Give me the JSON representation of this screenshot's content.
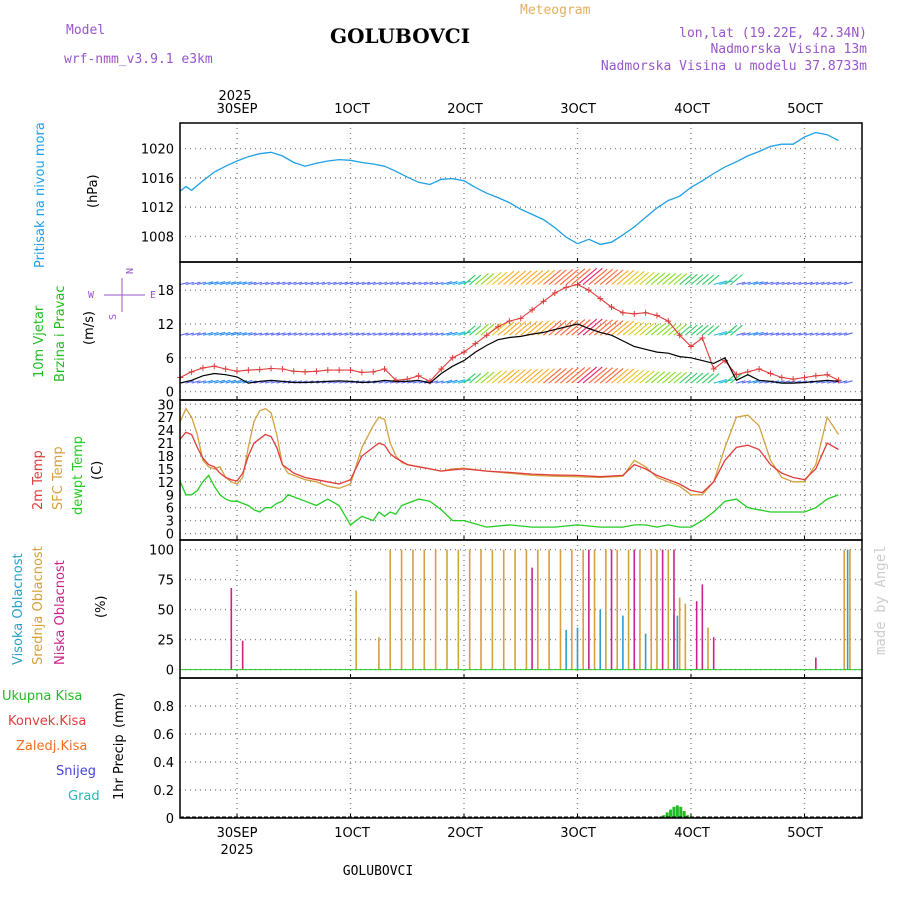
{
  "header": {
    "model_label": "Model",
    "model_value": "wrf-nmm_v3.9.1 e3km",
    "station": "GOLUBOVCI",
    "title": "Meteogram",
    "coords": "lon,lat (19.22E, 42.34N)",
    "elevation": "Nadmorska Visina 13m",
    "model_elevation": "Nadmorska Visina u modelu 37.8733m",
    "footer_station": "GOLUBOVCI",
    "credit": "made by Angel"
  },
  "colors": {
    "pressure": "#1ea0e6",
    "wind_label": "#22bb22",
    "tmp2m": "#e03c3c",
    "sfc": "#d4a040",
    "dewpt": "#22cc22",
    "high_cloud": "#2aa0c8",
    "mid_cloud": "#d4a040",
    "low_cloud": "#cc2288",
    "total_precip": "#22bb22",
    "conv_precip": "#e03c3c",
    "frz_precip": "#f07020",
    "snow": "#4444dd",
    "hail": "#22bbbb",
    "wind_dir": "#9955cc"
  },
  "time_axis": {
    "top_year": "2025",
    "bottom_year": "2025",
    "labels": [
      "30SEP",
      "1OCT",
      "2OCT",
      "3OCT",
      "4OCT",
      "5OCT"
    ]
  },
  "wind_compass": {
    "w": "W",
    "e": "E",
    "n": "N",
    "s": "S"
  },
  "chart_data": [
    {
      "type": "line",
      "id": "pressure",
      "title": "Pritisak na nivou mora",
      "ylabel": "(hPa)",
      "ylim": [
        1004.5,
        1023.5
      ],
      "yticks": [
        1008,
        1012,
        1016,
        1020
      ],
      "x_days": [
        -0.5,
        -0.45,
        -0.4,
        -0.3,
        -0.2,
        -0.1,
        0,
        0.1,
        0.2,
        0.3,
        0.4,
        0.5,
        0.6,
        0.7,
        0.8,
        0.9,
        1.0,
        1.1,
        1.2,
        1.3,
        1.4,
        1.5,
        1.6,
        1.7,
        1.8,
        1.9,
        2.0,
        2.1,
        2.2,
        2.3,
        2.4,
        2.5,
        2.6,
        2.7,
        2.8,
        2.9,
        3.0,
        3.1,
        3.2,
        3.3,
        3.4,
        3.5,
        3.6,
        3.7,
        3.8,
        3.9,
        4.0,
        4.1,
        4.2,
        4.3,
        4.4,
        4.5,
        4.6,
        4.7,
        4.8,
        4.9,
        5.0,
        5.1,
        5.2,
        5.3
      ],
      "values": [
        1014.2,
        1014.8,
        1014.3,
        1015.6,
        1016.8,
        1017.6,
        1018.3,
        1018.9,
        1019.3,
        1019.5,
        1019.0,
        1018.1,
        1017.6,
        1018.0,
        1018.3,
        1018.5,
        1018.4,
        1018.1,
        1017.9,
        1017.6,
        1016.9,
        1016.1,
        1015.4,
        1015.1,
        1015.8,
        1015.9,
        1015.6,
        1014.7,
        1013.9,
        1013.3,
        1012.6,
        1011.7,
        1011.0,
        1010.3,
        1009.2,
        1007.9,
        1007.0,
        1007.6,
        1006.9,
        1007.2,
        1008.2,
        1009.3,
        1010.6,
        1011.9,
        1012.9,
        1013.5,
        1014.7,
        1015.6,
        1016.6,
        1017.5,
        1018.2,
        1019.0,
        1019.6,
        1020.3,
        1020.6,
        1020.6,
        1021.6,
        1022.2,
        1021.9,
        1021.1
      ]
    },
    {
      "type": "line",
      "id": "wind",
      "title": "10m Vjetar",
      "title2": "Brzina i Pravac",
      "ylabel": "(m/s)",
      "ylim": [
        -1.5,
        23
      ],
      "yticks": [
        0,
        6,
        12,
        18
      ],
      "series": [
        {
          "name": "speed",
          "x_days": [
            -0.5,
            -0.4,
            -0.3,
            -0.2,
            -0.1,
            0,
            0.1,
            0.2,
            0.3,
            0.4,
            0.5,
            0.6,
            0.7,
            0.8,
            0.9,
            1.0,
            1.1,
            1.2,
            1.3,
            1.4,
            1.5,
            1.6,
            1.7,
            1.8,
            1.9,
            2.0,
            2.1,
            2.2,
            2.3,
            2.4,
            2.5,
            2.6,
            2.7,
            2.8,
            2.9,
            3.0,
            3.1,
            3.2,
            3.3,
            3.4,
            3.5,
            3.6,
            3.7,
            3.8,
            3.9,
            4.0,
            4.1,
            4.2,
            4.3,
            4.4,
            4.5,
            4.6,
            4.7,
            4.8,
            4.9,
            5.0,
            5.1,
            5.2,
            5.3
          ],
          "values": [
            1.5,
            2.0,
            2.8,
            3.2,
            3.0,
            2.6,
            1.5,
            1.8,
            2.0,
            1.8,
            1.6,
            1.6,
            1.7,
            1.8,
            1.9,
            1.8,
            1.6,
            1.7,
            2.0,
            1.8,
            1.8,
            2.0,
            1.5,
            3.2,
            4.5,
            5.5,
            7.0,
            8.2,
            9.2,
            9.6,
            9.8,
            10.2,
            10.5,
            11.0,
            11.5,
            12.0,
            11.2,
            10.5,
            10.0,
            9.0,
            8.0,
            7.5,
            7.0,
            6.8,
            6.2,
            6.0,
            5.5,
            5.0,
            6.0,
            2.0,
            3.0,
            2.0,
            1.8,
            1.5,
            1.5,
            1.6,
            1.8,
            2.0,
            1.8
          ]
        },
        {
          "name": "gust",
          "x_days": [
            -0.5,
            -0.4,
            -0.3,
            -0.2,
            -0.1,
            0,
            0.1,
            0.2,
            0.3,
            0.4,
            0.5,
            0.6,
            0.7,
            0.8,
            0.9,
            1.0,
            1.1,
            1.2,
            1.3,
            1.4,
            1.5,
            1.6,
            1.7,
            1.8,
            1.9,
            2.0,
            2.1,
            2.2,
            2.3,
            2.4,
            2.5,
            2.6,
            2.7,
            2.8,
            2.9,
            3.0,
            3.1,
            3.2,
            3.3,
            3.4,
            3.5,
            3.6,
            3.7,
            3.8,
            3.9,
            4.0,
            4.1,
            4.2,
            4.3,
            4.4,
            4.5,
            4.6,
            4.7,
            4.8,
            4.9,
            5.0,
            5.1,
            5.2,
            5.3
          ],
          "values": [
            2.5,
            3.5,
            4.2,
            4.5,
            4.0,
            3.6,
            3.8,
            3.9,
            4.1,
            4.0,
            3.6,
            3.5,
            3.6,
            3.8,
            3.8,
            3.8,
            3.4,
            3.5,
            4.0,
            2.0,
            2.2,
            2.8,
            1.8,
            4.0,
            6.0,
            7.0,
            8.5,
            10.0,
            11.5,
            12.5,
            13.0,
            14.5,
            16.0,
            17.5,
            18.5,
            19.0,
            18.0,
            16.5,
            15.0,
            14.0,
            13.8,
            14.0,
            13.5,
            12.5,
            10.0,
            8.0,
            9.5,
            4.0,
            5.5,
            3.0,
            3.5,
            4.0,
            3.2,
            2.5,
            2.2,
            2.5,
            2.8,
            3.0,
            2.0
          ]
        }
      ]
    },
    {
      "type": "line",
      "id": "temperature",
      "title": "2m Temp",
      "title2": "SFC Temp",
      "title3": "dewpt Temp",
      "ylabel": "(C)",
      "ylim": [
        -1.5,
        31
      ],
      "yticks": [
        0,
        3,
        6,
        9,
        12,
        15,
        18,
        21,
        24,
        27,
        30
      ],
      "x_days": [
        -0.5,
        -0.45,
        -0.4,
        -0.35,
        -0.3,
        -0.25,
        -0.2,
        -0.15,
        -0.1,
        -0.05,
        0,
        0.05,
        0.1,
        0.15,
        0.2,
        0.25,
        0.3,
        0.35,
        0.4,
        0.45,
        0.5,
        0.6,
        0.7,
        0.8,
        0.9,
        1.0,
        1.1,
        1.2,
        1.25,
        1.3,
        1.35,
        1.4,
        1.45,
        1.5,
        1.6,
        1.7,
        1.8,
        1.9,
        2.0,
        2.2,
        2.4,
        2.6,
        2.8,
        3.0,
        3.2,
        3.4,
        3.5,
        3.6,
        3.7,
        3.8,
        3.9,
        4.0,
        4.1,
        4.2,
        4.3,
        4.4,
        4.5,
        4.6,
        4.7,
        4.8,
        4.9,
        5.0,
        5.1,
        5.2,
        5.3
      ],
      "series": [
        {
          "name": "2m",
          "values": [
            22,
            23.5,
            23,
            20,
            17.5,
            16,
            15.5,
            14,
            13,
            12.5,
            12.2,
            14,
            18,
            21,
            22,
            23,
            22.5,
            20,
            16,
            15,
            14,
            13,
            12.5,
            12,
            11.5,
            12.5,
            18,
            20,
            21,
            20.5,
            18.5,
            17.5,
            16.8,
            16,
            15.5,
            15,
            14.5,
            14.8,
            15,
            14.5,
            14.2,
            13.8,
            13.6,
            13.5,
            13.2,
            13.5,
            16,
            15,
            13.5,
            12.5,
            11.5,
            10,
            9.5,
            12,
            17,
            20,
            20.5,
            19.5,
            16,
            14,
            13,
            12.5,
            15,
            21,
            19.5
          ]
        },
        {
          "name": "sfc",
          "values": [
            26,
            29,
            27,
            23,
            17,
            15.5,
            15,
            15.5,
            13,
            12,
            11.5,
            13,
            20,
            26,
            28.5,
            29,
            28,
            23,
            16,
            14,
            13.5,
            12.5,
            12,
            11,
            10.5,
            11.5,
            20,
            25,
            27,
            26.5,
            21,
            18,
            16.5,
            16,
            15.5,
            15,
            14.5,
            15,
            15.2,
            14.5,
            14,
            13.5,
            13.3,
            13.2,
            13,
            13.3,
            17,
            15.5,
            13,
            12,
            11,
            9,
            9,
            12,
            20,
            27,
            27.5,
            25,
            17,
            13,
            12,
            12,
            16,
            27,
            23
          ]
        },
        {
          "name": "dewpt",
          "values": [
            12,
            9,
            9,
            10,
            12,
            13.5,
            11,
            9,
            8,
            7.5,
            7.5,
            7,
            6.5,
            5.5,
            5,
            6,
            6,
            7,
            7.5,
            9,
            8.5,
            7.5,
            6.5,
            8,
            6.5,
            2,
            4,
            3,
            5,
            4,
            5,
            4.5,
            6.5,
            7,
            8,
            7.5,
            5.5,
            3,
            3,
            1.5,
            2,
            1.5,
            1.5,
            2,
            1.5,
            1.5,
            2,
            2,
            1.5,
            2,
            1.5,
            1.5,
            3,
            5,
            7.5,
            8,
            6,
            5.5,
            5,
            5,
            5,
            5,
            6,
            8,
            9
          ]
        }
      ]
    },
    {
      "type": "bar",
      "id": "clouds",
      "title": "Visoka Oblacnost",
      "title2": "Srednja Oblacnost",
      "title3": "Niska Oblacnost",
      "ylabel": "(%)",
      "ylim": [
        -7,
        108
      ],
      "yticks": [
        0,
        25,
        50,
        75,
        100
      ],
      "low": {
        "x_days": [
          -0.05,
          0.05,
          2.6,
          3.1,
          3.3,
          3.5,
          3.75,
          3.85,
          4.05,
          4.1,
          4.2,
          5.1
        ],
        "values": [
          68,
          24,
          85,
          100,
          100,
          100,
          100,
          100,
          57,
          71,
          27,
          10
        ]
      },
      "mid": {
        "x_days": [
          1.05,
          1.25,
          1.35,
          1.45,
          1.55,
          1.65,
          1.75,
          1.85,
          1.95,
          2.05,
          2.15,
          2.25,
          2.35,
          2.45,
          2.55,
          2.65,
          2.75,
          2.85,
          2.95,
          3.05,
          3.15,
          3.25,
          3.35,
          3.45,
          3.55,
          3.65,
          3.7,
          3.8,
          3.9,
          3.95,
          4.15,
          5.35,
          5.4
        ],
        "values": [
          66,
          27,
          100,
          100,
          100,
          100,
          100,
          100,
          100,
          100,
          100,
          100,
          100,
          100,
          100,
          100,
          100,
          100,
          100,
          100,
          100,
          100,
          100,
          100,
          100,
          100,
          100,
          100,
          60,
          55,
          35,
          100,
          100
        ]
      },
      "high": {
        "x_days": [
          2.9,
          3.0,
          3.2,
          3.4,
          3.6,
          3.85,
          3.88,
          5.38
        ],
        "values": [
          33,
          35,
          50,
          45,
          30,
          46,
          45,
          100
        ]
      }
    },
    {
      "type": "bar",
      "id": "precip",
      "title": "1hr Precip",
      "ylabel": "(mm)",
      "legend": [
        "Ukupna Kisa",
        "Konvek.Kisa",
        "Zaledj.Kisa",
        "Snijeg",
        "Grad"
      ],
      "ylim": [
        0,
        1.0
      ],
      "yticks": [
        0,
        0.2,
        0.4,
        0.6,
        0.8
      ],
      "ytick_labels": [
        "0",
        "0.2",
        "0.4",
        "0.6",
        "0.8"
      ],
      "x_days": [
        3.7,
        3.73,
        3.76,
        3.79,
        3.82,
        3.85,
        3.88,
        3.91,
        3.94,
        3.97,
        4.0
      ],
      "values": [
        0.005,
        0.01,
        0.02,
        0.04,
        0.06,
        0.08,
        0.09,
        0.08,
        0.05,
        0.02,
        0.01
      ]
    }
  ]
}
